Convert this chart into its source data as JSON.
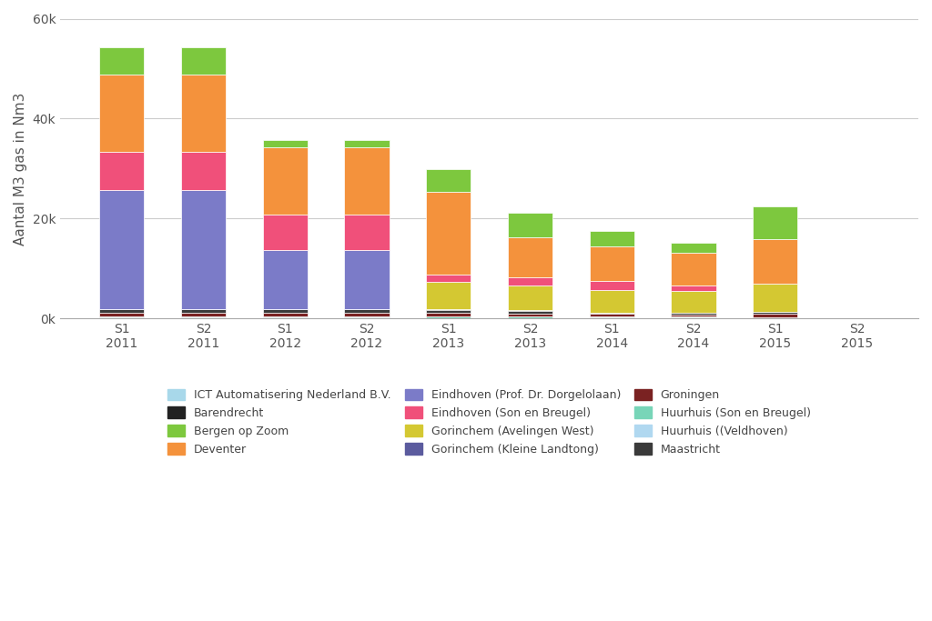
{
  "categories": [
    "S1\n2011",
    "S2\n2011",
    "S1\n2012",
    "S2\n2012",
    "S1\n2013",
    "S2\n2013",
    "S1\n2014",
    "S2\n2014",
    "S1\n2015",
    "S2\n2015"
  ],
  "series": [
    {
      "label": "ICT Automatisering Nederland B.V.",
      "color": "#a8d8ea",
      "values": [
        200,
        200,
        200,
        200,
        150,
        150,
        200,
        200,
        150,
        0
      ]
    },
    {
      "label": "Huurhuis (Son en Breugel)",
      "color": "#78d5b8",
      "values": [
        200,
        200,
        200,
        200,
        200,
        200,
        200,
        200,
        150,
        0
      ]
    },
    {
      "label": "Huurhuis ((Veldhoven)",
      "color": "#b0d8f0",
      "values": [
        0,
        0,
        0,
        0,
        0,
        0,
        0,
        0,
        0,
        0
      ]
    },
    {
      "label": "Groningen",
      "color": "#7a2222",
      "values": [
        800,
        800,
        800,
        800,
        800,
        700,
        500,
        400,
        600,
        0
      ]
    },
    {
      "label": "Maastricht",
      "color": "#3a3a3a",
      "values": [
        600,
        600,
        600,
        600,
        500,
        500,
        300,
        300,
        500,
        0
      ]
    },
    {
      "label": "Barendrecht",
      "color": "#222222",
      "values": [
        0,
        0,
        0,
        0,
        200,
        150,
        0,
        0,
        0,
        0
      ]
    },
    {
      "label": "Gorinchem (Kleine Landtong)",
      "color": "#5b5b9e",
      "values": [
        0,
        0,
        0,
        0,
        0,
        0,
        0,
        0,
        0,
        0
      ]
    },
    {
      "label": "Eindhoven (Prof. Dr. Dorgelolaan)",
      "color": "#7b7bc8",
      "values": [
        24000,
        24000,
        12000,
        12000,
        0,
        0,
        0,
        0,
        0,
        0
      ]
    },
    {
      "label": "Gorinchem (Avelingen West)",
      "color": "#d4c832",
      "values": [
        0,
        0,
        0,
        0,
        5500,
        5000,
        4500,
        4500,
        5500,
        0
      ]
    },
    {
      "label": "Eindhoven (Son en Breugel)",
      "color": "#f0507a",
      "values": [
        7500,
        7500,
        7000,
        7000,
        1500,
        1500,
        1800,
        1000,
        0,
        0
      ]
    },
    {
      "label": "Deventer",
      "color": "#f4923c",
      "values": [
        15500,
        15500,
        13500,
        13500,
        16500,
        8000,
        7000,
        6500,
        9000,
        0
      ]
    },
    {
      "label": "Bergen op Zoom",
      "color": "#7dc83e",
      "values": [
        5500,
        5500,
        1500,
        1500,
        4500,
        5000,
        3000,
        2000,
        6500,
        0
      ]
    }
  ],
  "ylabel": "Aantal M3 gas in Nm3",
  "ylim": [
    0,
    60000
  ],
  "yticks": [
    0,
    20000,
    40000,
    60000
  ],
  "yticklabels": [
    "0k",
    "20k",
    "40k",
    "60k"
  ],
  "background_color": "#ffffff",
  "grid_color": "#cccccc"
}
